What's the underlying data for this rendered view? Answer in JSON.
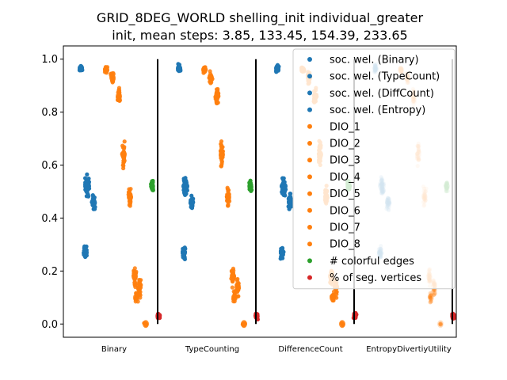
{
  "chart_data": {
    "type": "scatter",
    "title": "GRID_8DEG_WORLD shelling_init individual_greater",
    "subtitle": "init, mean steps: 3.85, 133.45, 154.39, 233.65",
    "xlabel": "",
    "ylabel": "",
    "ylim": [
      -0.05,
      1.05
    ],
    "yticks": [
      "0.0",
      "0.2",
      "0.4",
      "0.6",
      "0.8",
      "1.0"
    ],
    "categories": [
      "Binary",
      "TypeCounting",
      "DifferenceCount",
      "EntropyDivertiyUtility"
    ],
    "grid": false,
    "legend_position": "top-right",
    "series": [
      {
        "name": "soc. wel. (Binary)",
        "color": "#1f77b4",
        "values": [
          0.965,
          0.52,
          0.27
        ]
      },
      {
        "name": "soc. wel. (TypeCount)",
        "color": "#1f77b4",
        "values": [
          0.965,
          0.52,
          0.27
        ]
      },
      {
        "name": "soc. wel. (DiffCount)",
        "color": "#1f77b4",
        "values": [
          0.965,
          0.52,
          0.27
        ]
      },
      {
        "name": "soc. wel. (Entropy)",
        "color": "#1f77b4",
        "values": [
          0.965,
          0.52,
          0.27
        ]
      },
      {
        "name": "DIO_1",
        "color": "#ff7f0e",
        "values": [
          0.96,
          0.18
        ]
      },
      {
        "name": "DIO_2",
        "color": "#ff7f0e",
        "values": [
          0.93,
          0.15
        ]
      },
      {
        "name": "DIO_3",
        "color": "#ff7f0e",
        "values": [
          0.87,
          0.1
        ]
      },
      {
        "name": "DIO_4",
        "color": "#ff7f0e",
        "values": [
          0.64,
          0.05
        ]
      },
      {
        "name": "DIO_5",
        "color": "#ff7f0e",
        "values": [
          0.57
        ]
      },
      {
        "name": "DIO_6",
        "color": "#ff7f0e",
        "values": [
          0.48
        ]
      },
      {
        "name": "DIO_7",
        "color": "#ff7f0e",
        "values": [
          0.2
        ]
      },
      {
        "name": "DIO_8",
        "color": "#ff7f0e",
        "values": [
          0.0
        ]
      },
      {
        "name": "# colorful edges",
        "color": "#2ca02c",
        "values": [
          0.52
        ]
      },
      {
        "name": "% of seg. vertices",
        "color": "#d62728",
        "values": [
          0.03
        ]
      }
    ]
  }
}
